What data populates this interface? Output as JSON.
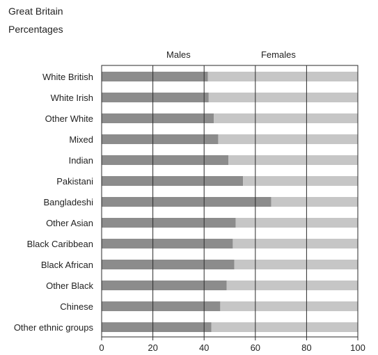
{
  "chart_data": {
    "type": "bar",
    "orientation": "horizontal",
    "stacked": true,
    "header_lines": [
      "Great Britain",
      "Percentages"
    ],
    "categories": [
      "White British",
      "White Irish",
      "Other White",
      "Mixed",
      "Indian",
      "Pakistani",
      "Bangladeshi",
      "Other Asian",
      "Black Caribbean",
      "Black African",
      "Other Black",
      "Chinese",
      "Other ethnic groups"
    ],
    "series": [
      {
        "name": "Males",
        "color": "#8c8c8c",
        "values": [
          41.5,
          41.8,
          43.8,
          45.5,
          49.5,
          55.2,
          66.2,
          52.3,
          51.2,
          51.8,
          48.8,
          46.3,
          42.8
        ]
      },
      {
        "name": "Females",
        "color": "#c6c6c6",
        "values": [
          58.5,
          58.2,
          56.2,
          54.5,
          50.5,
          44.8,
          33.8,
          47.7,
          48.8,
          48.2,
          51.2,
          53.7,
          57.2
        ]
      }
    ],
    "xlim": [
      0,
      100
    ],
    "xticks": [
      0,
      20,
      40,
      60,
      80,
      100
    ],
    "grid": "vertical",
    "legend_placement": "top"
  }
}
